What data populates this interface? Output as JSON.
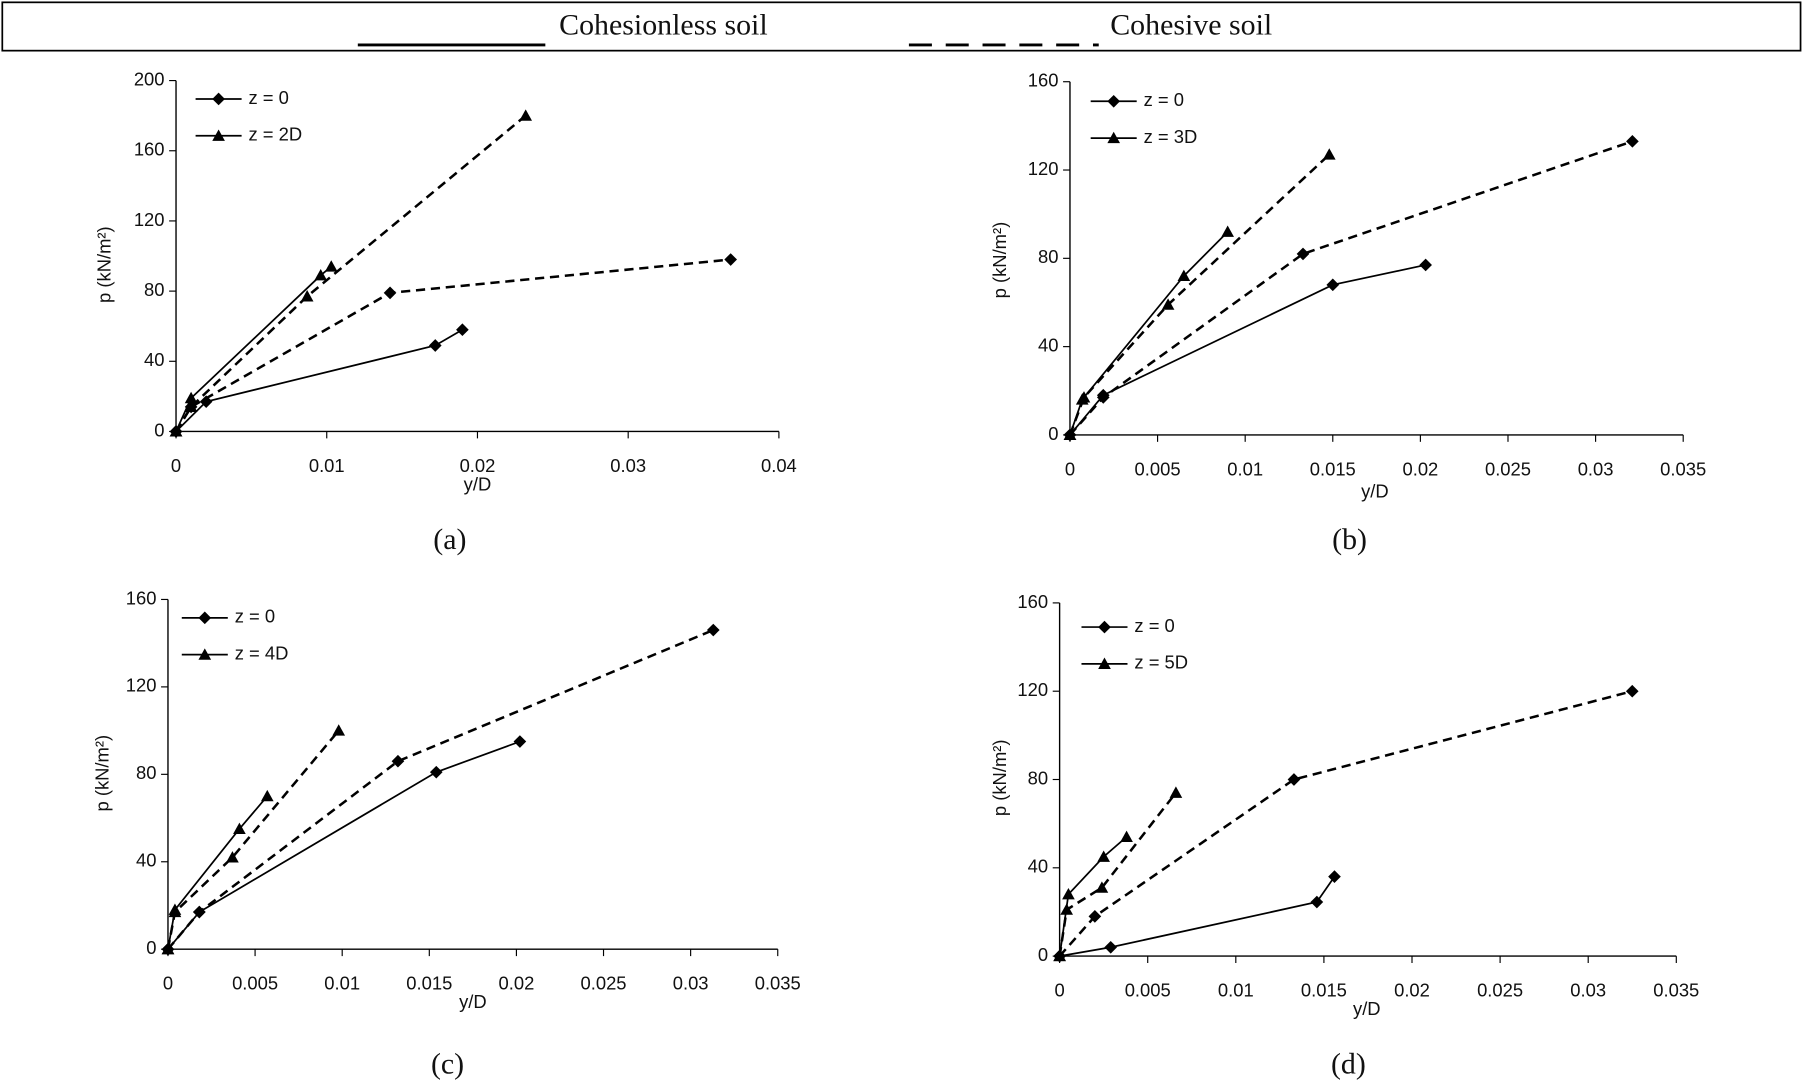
{
  "legend": {
    "entries": [
      {
        "label": "Cohesionless soil",
        "dash": "solid"
      },
      {
        "label": "Cohesive soil",
        "dash": "dashed"
      }
    ]
  },
  "chart_data": [
    {
      "type": "line",
      "label": "(a)",
      "xlabel": "y/D",
      "ylabel": "p (kN/m²)",
      "xlim": [
        0,
        0.04
      ],
      "ylim": [
        0,
        200
      ],
      "xticks": [
        0,
        0.01,
        0.02,
        0.03,
        0.04
      ],
      "yticks": [
        0,
        40,
        80,
        120,
        160,
        200
      ],
      "series": [
        {
          "name": "z = 0",
          "marker": "diamond",
          "dash": "solid",
          "color": "#000000",
          "x": [
            0,
            0.002,
            0.0172,
            0.019
          ],
          "values": [
            0,
            17,
            49,
            58
          ]
        },
        {
          "name": "z = 0",
          "marker": "diamond",
          "dash": "dashed",
          "color": "#000000",
          "x": [
            0,
            0.001,
            0.0142,
            0.0368
          ],
          "values": [
            0,
            14,
            79,
            98
          ]
        },
        {
          "name": "z = 2D",
          "marker": "triangle",
          "dash": "solid",
          "color": "#000000",
          "x": [
            0,
            0.001,
            0.0096,
            0.0103
          ],
          "values": [
            0,
            19,
            89,
            94
          ]
        },
        {
          "name": "z = 2D",
          "marker": "triangle",
          "dash": "dashed",
          "color": "#000000",
          "x": [
            0,
            0.001,
            0.0087,
            0.0232
          ],
          "values": [
            0,
            14,
            77,
            180
          ]
        }
      ]
    },
    {
      "type": "line",
      "label": "(b)",
      "xlabel": "y/D",
      "ylabel": "p (kN/m²)",
      "xlim": [
        0,
        0.035
      ],
      "ylim": [
        0,
        160
      ],
      "xticks": [
        0,
        0.005,
        0.01,
        0.015,
        0.02,
        0.025,
        0.03,
        0.035
      ],
      "yticks": [
        0,
        40,
        80,
        120,
        160
      ],
      "series": [
        {
          "name": "z = 0",
          "marker": "diamond",
          "dash": "solid",
          "color": "#000000",
          "x": [
            0,
            0.0019,
            0.015,
            0.0203
          ],
          "values": [
            0,
            18,
            68,
            77
          ]
        },
        {
          "name": "z = 0",
          "marker": "diamond",
          "dash": "dashed",
          "color": "#000000",
          "x": [
            0,
            0.0019,
            0.0133,
            0.0321
          ],
          "values": [
            0,
            17,
            82,
            133
          ]
        },
        {
          "name": "z = 3D",
          "marker": "triangle",
          "dash": "solid",
          "color": "#000000",
          "x": [
            0,
            0.0007,
            0.0065,
            0.009
          ],
          "values": [
            0,
            16,
            72,
            92
          ]
        },
        {
          "name": "z = 3D",
          "marker": "triangle",
          "dash": "dashed",
          "color": "#000000",
          "x": [
            0,
            0.0008,
            0.0056,
            0.0148
          ],
          "values": [
            0,
            17,
            59,
            127
          ]
        }
      ]
    },
    {
      "type": "line",
      "label": "(c)",
      "xlabel": "y/D",
      "ylabel": "p (kN/m²)",
      "xlim": [
        0,
        0.035
      ],
      "ylim": [
        0,
        160
      ],
      "xticks": [
        0,
        0.005,
        0.01,
        0.015,
        0.02,
        0.025,
        0.03,
        0.035
      ],
      "yticks": [
        0,
        40,
        80,
        120,
        160
      ],
      "series": [
        {
          "name": "z = 0",
          "marker": "diamond",
          "dash": "solid",
          "color": "#000000",
          "x": [
            0,
            0.0018,
            0.0154,
            0.0202
          ],
          "values": [
            0,
            17,
            81,
            95
          ]
        },
        {
          "name": "z = 0",
          "marker": "diamond",
          "dash": "dashed",
          "color": "#000000",
          "x": [
            0,
            0.0018,
            0.0132,
            0.0313
          ],
          "values": [
            0,
            17,
            86,
            146
          ]
        },
        {
          "name": "z = 4D",
          "marker": "triangle",
          "dash": "solid",
          "color": "#000000",
          "x": [
            0,
            0.0004,
            0.0041,
            0.0057
          ],
          "values": [
            0,
            18,
            55,
            70
          ]
        },
        {
          "name": "z = 4D",
          "marker": "triangle",
          "dash": "dashed",
          "color": "#000000",
          "x": [
            0,
            0.0004,
            0.0037,
            0.0098
          ],
          "values": [
            0,
            17,
            42,
            100
          ]
        }
      ]
    },
    {
      "type": "line",
      "label": "(d)",
      "xlabel": "y/D",
      "ylabel": "p (kN/m²)",
      "xlim": [
        0,
        0.035
      ],
      "ylim": [
        0,
        160
      ],
      "xticks": [
        0,
        0.005,
        0.01,
        0.015,
        0.02,
        0.025,
        0.03,
        0.035
      ],
      "yticks": [
        0,
        40,
        80,
        120,
        160
      ],
      "series": [
        {
          "name": "z = 0",
          "marker": "diamond",
          "dash": "solid",
          "color": "#000000",
          "x": [
            0,
            0.0029,
            0.0146,
            0.0156
          ],
          "values": [
            0,
            4,
            24.5,
            36
          ]
        },
        {
          "name": "z = 0",
          "marker": "diamond",
          "dash": "dashed",
          "color": "#000000",
          "x": [
            0,
            0.002,
            0.0133,
            0.0325
          ],
          "values": [
            0,
            18,
            80,
            120
          ]
        },
        {
          "name": "z = 5D",
          "marker": "triangle",
          "dash": "solid",
          "color": "#000000",
          "x": [
            0,
            0.0005,
            0.0025,
            0.0038
          ],
          "values": [
            0,
            28,
            45,
            54
          ]
        },
        {
          "name": "z = 5D",
          "marker": "triangle",
          "dash": "dashed",
          "color": "#000000",
          "x": [
            0,
            0.0004,
            0.0024,
            0.0066
          ],
          "values": [
            0,
            21,
            31,
            74
          ]
        }
      ]
    }
  ]
}
